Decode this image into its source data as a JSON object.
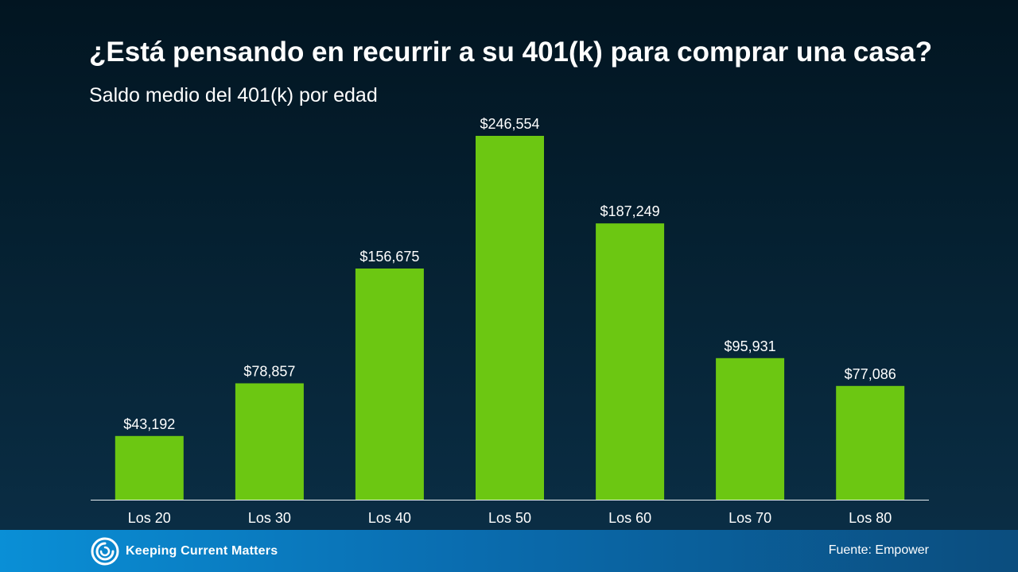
{
  "slide": {
    "title": "¿Está pensando en recurrir a su 401(k) para comprar una casa?",
    "subtitle": "Saldo medio del 401(k) por edad"
  },
  "footer": {
    "brand": "Keeping Current Matters",
    "logo_icon": "swirl-logo-icon",
    "source": "Fuente: Empower"
  },
  "colors": {
    "bar": "#6cc712",
    "background": "#04202f",
    "footer_band": "#0a7cc2"
  },
  "chart_data": {
    "type": "bar",
    "categories": [
      "Los 20",
      "Los 30",
      "Los 40",
      "Los 50",
      "Los 60",
      "Los 70",
      "Los 80"
    ],
    "values": [
      43192,
      78857,
      156675,
      246554,
      187249,
      95931,
      77086
    ],
    "data_labels": [
      "$43,192",
      "$78,857",
      "$156,675",
      "$246,554",
      "$187,249",
      "$95,931",
      "$77,086"
    ],
    "title": "",
    "xlabel": "",
    "ylabel": "",
    "ylim": [
      0,
      246554
    ],
    "grid": false,
    "legend": "none"
  }
}
